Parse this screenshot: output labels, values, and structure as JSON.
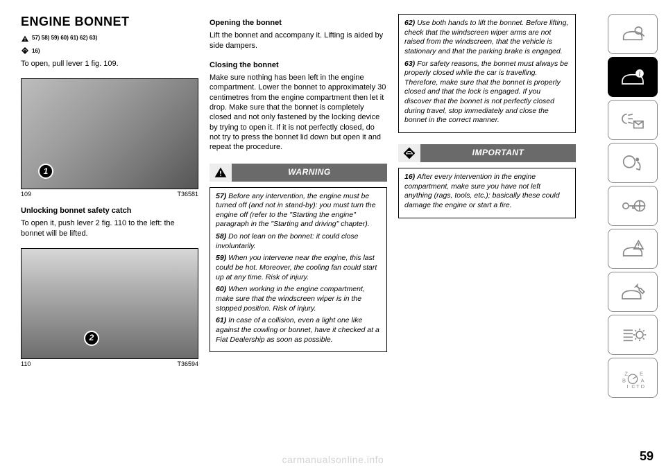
{
  "page_number": "59",
  "watermark": "carmanualsonline.info",
  "col1": {
    "heading": "ENGINE BONNET",
    "ref_line_1": "57) 58) 59) 60) 61) 62) 63)",
    "ref_line_2": "16)",
    "p1": "To open, pull lever 1 fig. 109.",
    "fig1": {
      "num": "109",
      "code": "T36581",
      "bubble": "1"
    },
    "sub1": "Unlocking bonnet safety catch",
    "p2": "To open it, push lever 2 fig. 110 to the left: the bonnet will be lifted.",
    "fig2": {
      "num": "110",
      "code": "T36594",
      "bubble": "2"
    }
  },
  "col2": {
    "sub1": "Opening the bonnet",
    "p1": "Lift the bonnet and accompany it. Lifting is aided by side dampers.",
    "sub2": "Closing the bonnet",
    "p2": "Make sure nothing has been left in the engine compartment. Lower the bonnet to approximately 30 centimetres from the engine compartment then let it drop. Make sure that the bonnet is completely closed and not only fastened by the locking device by trying to open it. If it is not perfectly closed, do not try to press the bonnet lid down but open it and repeat the procedure.",
    "banner": "WARNING",
    "warnings": [
      {
        "n": "57)",
        "t": "Before any intervention, the engine must be turned off (and not in stand-by): you must turn the engine off (refer to the \"Starting the engine\" paragraph in the \"Starting and driving\" chapter)."
      },
      {
        "n": "58)",
        "t": "Do not lean on the bonnet: it could close involuntarily."
      },
      {
        "n": "59)",
        "t": "When you intervene near the engine, this last could be hot. Moreover, the cooling fan could start up at any time. Risk of injury."
      },
      {
        "n": "60)",
        "t": "When working in the engine compartment, make sure that the windscreen wiper is in the stopped position. Risk of injury."
      },
      {
        "n": "61)",
        "t": "In case of a collision, even a light one like against the cowling or bonnet, have it checked at a Fiat Dealership as soon as possible."
      }
    ]
  },
  "col3": {
    "warnings1": [
      {
        "n": "62)",
        "t": "Use both hands to lift the bonnet. Before lifting, check that the windscreen wiper arms are not raised from the windscreen, that the vehicle is stationary and that the parking brake is engaged."
      },
      {
        "n": "63)",
        "t": "For safety reasons, the bonnet must always be properly closed while the car is travelling. Therefore, make sure that the bonnet is properly closed and that the lock is engaged. If you discover that the bonnet is not perfectly closed during travel, stop immediately and close the bonnet in the correct manner."
      }
    ],
    "banner": "IMPORTANT",
    "warnings2": [
      {
        "n": "16)",
        "t": "After every intervention in the engine compartment, make sure you have not left anything (rags, tools, etc.); basically these could damage the engine or start a fire."
      }
    ]
  },
  "sidebar": {
    "items": [
      {
        "name": "car-search-icon",
        "active": false
      },
      {
        "name": "car-info-icon",
        "active": true
      },
      {
        "name": "lights-mail-icon",
        "active": false
      },
      {
        "name": "airbag-icon",
        "active": false
      },
      {
        "name": "key-wheel-icon",
        "active": false
      },
      {
        "name": "car-warning-icon",
        "active": false
      },
      {
        "name": "car-wrench-icon",
        "active": false
      },
      {
        "name": "list-gear-icon",
        "active": false
      },
      {
        "name": "abc-icon",
        "active": false
      }
    ]
  },
  "colors": {
    "text": "#000000",
    "banner_bg": "#6a6a6a",
    "banner_icon_bg": "#ededed",
    "sidebar_border": "#888888",
    "sidebar_active_bg": "#000000",
    "watermark": "rgba(0,0,0,0.18)"
  }
}
